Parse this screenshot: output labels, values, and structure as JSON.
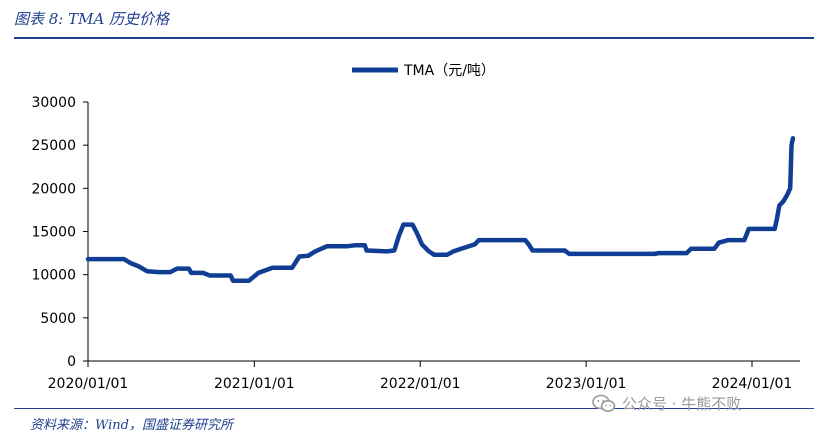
{
  "figure": {
    "title": "图表 8:  TMA 历史价格",
    "source": "资料来源：Wind，国盛证券研究所",
    "watermark": "公众号 · 牛熊不败"
  },
  "chart_data": {
    "type": "line",
    "title": "",
    "xlabel": "",
    "ylabel": "",
    "legend_position": "top-center",
    "grid": false,
    "ylim": [
      0,
      30000
    ],
    "xlim": [
      "2020-01-01",
      "2024-03-31"
    ],
    "y_ticks": [
      "0",
      "5000",
      "10000",
      "15000",
      "20000",
      "25000",
      "30000"
    ],
    "x_ticks": [
      {
        "date": "2020-01-01",
        "label": "2020/01/01"
      },
      {
        "date": "2021-01-01",
        "label": "2021/01/01"
      },
      {
        "date": "2022-01-01",
        "label": "2022/01/01"
      },
      {
        "date": "2023-01-01",
        "label": "2023/01/01"
      },
      {
        "date": "2024-01-01",
        "label": "2024/01/01"
      }
    ],
    "series": [
      {
        "name": "TMA（元/吨）",
        "color": "#0f3e94",
        "points": [
          [
            "2020-01-01",
            11800
          ],
          [
            "2020-03-20",
            11800
          ],
          [
            "2020-04-05",
            11300
          ],
          [
            "2020-04-20",
            11000
          ],
          [
            "2020-05-10",
            10400
          ],
          [
            "2020-06-05",
            10300
          ],
          [
            "2020-06-30",
            10300
          ],
          [
            "2020-07-15",
            10700
          ],
          [
            "2020-08-10",
            10700
          ],
          [
            "2020-08-15",
            10200
          ],
          [
            "2020-09-10",
            10200
          ],
          [
            "2020-09-25",
            9900
          ],
          [
            "2020-11-10",
            9900
          ],
          [
            "2020-11-15",
            9300
          ],
          [
            "2020-12-20",
            9300
          ],
          [
            "2021-01-10",
            10200
          ],
          [
            "2021-02-10",
            10800
          ],
          [
            "2021-03-25",
            10800
          ],
          [
            "2021-04-10",
            12100
          ],
          [
            "2021-04-30",
            12200
          ],
          [
            "2021-05-15",
            12700
          ],
          [
            "2021-06-10",
            13300
          ],
          [
            "2021-07-25",
            13300
          ],
          [
            "2021-08-10",
            13400
          ],
          [
            "2021-09-01",
            13400
          ],
          [
            "2021-09-05",
            12800
          ],
          [
            "2021-10-20",
            12700
          ],
          [
            "2021-11-05",
            12800
          ],
          [
            "2021-11-15",
            14500
          ],
          [
            "2021-11-25",
            15800
          ],
          [
            "2021-12-15",
            15800
          ],
          [
            "2021-12-25",
            14800
          ],
          [
            "2022-01-05",
            13500
          ],
          [
            "2022-01-20",
            12700
          ],
          [
            "2022-02-01",
            12300
          ],
          [
            "2022-03-01",
            12300
          ],
          [
            "2022-03-15",
            12700
          ],
          [
            "2022-04-01",
            13000
          ],
          [
            "2022-05-01",
            13500
          ],
          [
            "2022-05-10",
            14000
          ],
          [
            "2022-08-20",
            14000
          ],
          [
            "2022-08-28",
            13500
          ],
          [
            "2022-09-05",
            12800
          ],
          [
            "2022-11-15",
            12800
          ],
          [
            "2022-11-25",
            12400
          ],
          [
            "2023-05-31",
            12400
          ],
          [
            "2023-06-10",
            12500
          ],
          [
            "2023-08-10",
            12500
          ],
          [
            "2023-08-20",
            13000
          ],
          [
            "2023-10-10",
            13000
          ],
          [
            "2023-10-20",
            13700
          ],
          [
            "2023-11-10",
            14000
          ],
          [
            "2023-12-15",
            14000
          ],
          [
            "2023-12-25",
            15300
          ],
          [
            "2024-02-20",
            15300
          ],
          [
            "2024-02-25",
            16500
          ],
          [
            "2024-03-01",
            18000
          ],
          [
            "2024-03-10",
            18500
          ],
          [
            "2024-03-18",
            19200
          ],
          [
            "2024-03-25",
            20000
          ],
          [
            "2024-03-28",
            25000
          ],
          [
            "2024-03-31",
            25800
          ]
        ]
      }
    ]
  }
}
